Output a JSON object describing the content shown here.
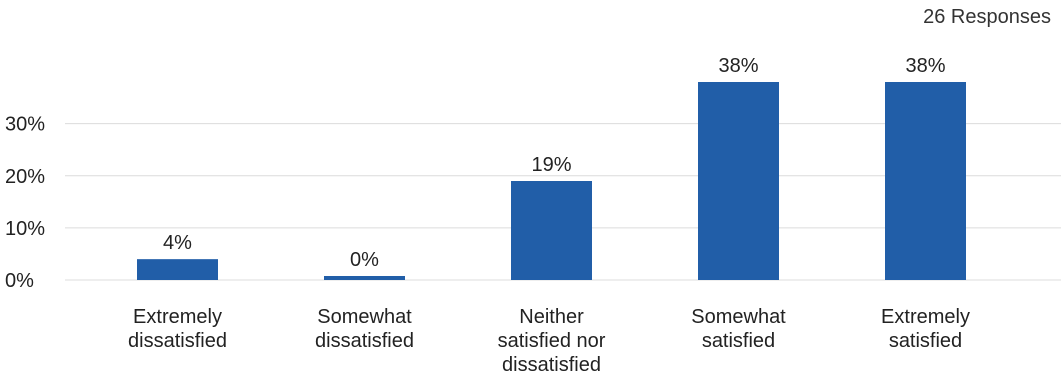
{
  "responses_label": "26 Responses",
  "colors": {
    "bar": "#215ea8",
    "grid": "#dcdcdc",
    "text": "#222222"
  },
  "chart_data": {
    "type": "bar",
    "categories": [
      [
        "Extremely",
        "dissatisfied"
      ],
      [
        "Somewhat",
        "dissatisfied"
      ],
      [
        "Neither",
        "satisfied nor",
        "dissatisfied"
      ],
      [
        "Somewhat",
        "satisfied"
      ],
      [
        "Extremely",
        "satisfied"
      ]
    ],
    "values": [
      4,
      0,
      19,
      38,
      38
    ],
    "data_labels": [
      "4%",
      "0%",
      "19%",
      "38%",
      "38%"
    ],
    "yticks": [
      0,
      10,
      20,
      30
    ],
    "ytick_labels": [
      "0%",
      "10%",
      "20%",
      "30%"
    ],
    "ylim": [
      0,
      38
    ],
    "grid": true,
    "legend": "none"
  }
}
